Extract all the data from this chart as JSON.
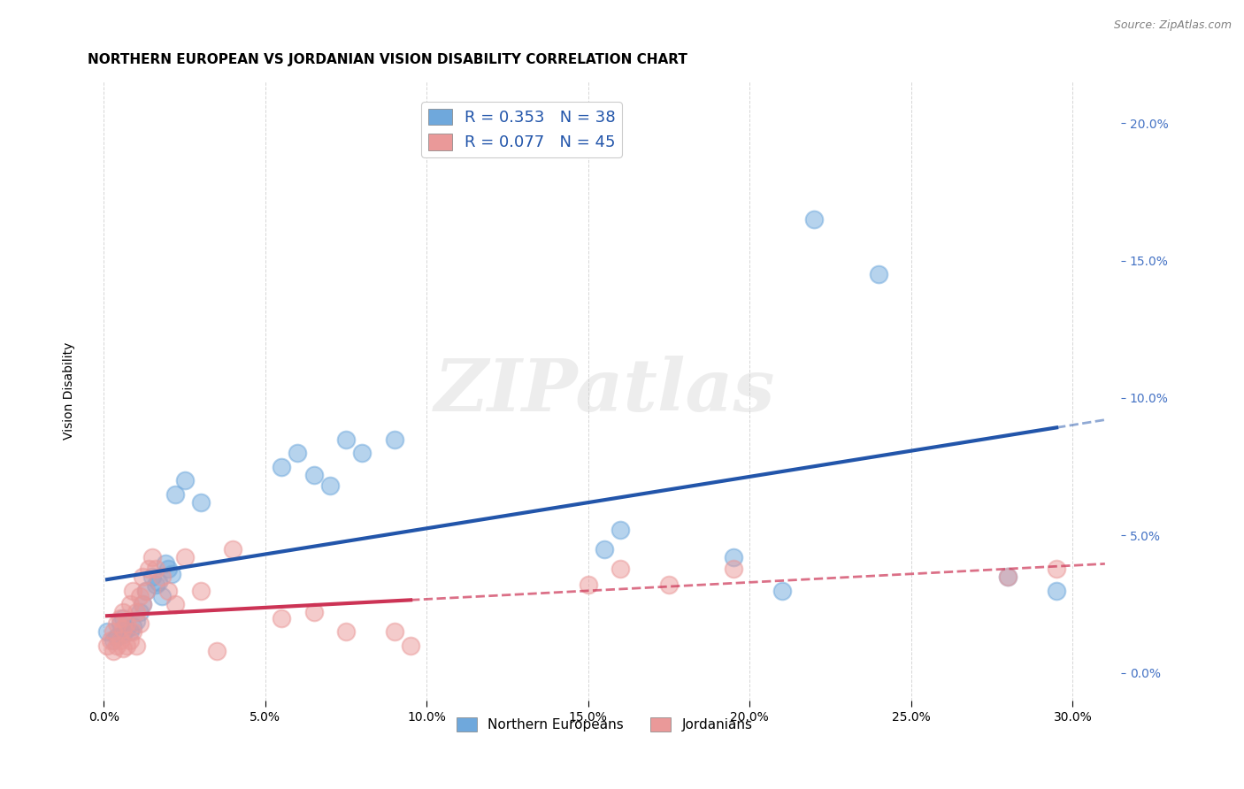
{
  "title": "NORTHERN EUROPEAN VS JORDANIAN VISION DISABILITY CORRELATION CHART",
  "source": "Source: ZipAtlas.com",
  "ylabel": "Vision Disability",
  "xlabel_ticks": [
    "0.0%",
    "5.0%",
    "10.0%",
    "15.0%",
    "20.0%",
    "25.0%",
    "30.0%"
  ],
  "xlabel_vals": [
    0.0,
    0.05,
    0.1,
    0.15,
    0.2,
    0.25,
    0.3
  ],
  "ylabel_ticks": [
    "0.0%",
    "5.0%",
    "10.0%",
    "15.0%",
    "20.0%"
  ],
  "ylabel_vals": [
    0.0,
    0.05,
    0.1,
    0.15,
    0.2
  ],
  "xlim": [
    -0.005,
    0.315
  ],
  "ylim": [
    -0.01,
    0.215
  ],
  "blue_R": "0.353",
  "blue_N": "38",
  "pink_R": "0.077",
  "pink_N": "45",
  "blue_color": "#6fa8dc",
  "blue_line_color": "#2255aa",
  "pink_color": "#ea9999",
  "pink_line_color": "#cc3355",
  "watermark": "ZIPatlas",
  "legend_label_blue": "Northern Europeans",
  "legend_label_pink": "Jordanians",
  "blue_scatter_x": [
    0.001,
    0.003,
    0.004,
    0.005,
    0.006,
    0.006,
    0.007,
    0.008,
    0.009,
    0.01,
    0.011,
    0.012,
    0.013,
    0.015,
    0.016,
    0.017,
    0.018,
    0.019,
    0.02,
    0.021,
    0.022,
    0.025,
    0.03,
    0.055,
    0.06,
    0.065,
    0.07,
    0.075,
    0.08,
    0.09,
    0.155,
    0.16,
    0.195,
    0.21,
    0.22,
    0.24,
    0.28,
    0.295
  ],
  "blue_scatter_y": [
    0.015,
    0.012,
    0.013,
    0.018,
    0.014,
    0.02,
    0.016,
    0.015,
    0.017,
    0.019,
    0.022,
    0.025,
    0.03,
    0.035,
    0.032,
    0.033,
    0.028,
    0.04,
    0.038,
    0.036,
    0.065,
    0.07,
    0.062,
    0.075,
    0.08,
    0.072,
    0.068,
    0.085,
    0.08,
    0.085,
    0.045,
    0.052,
    0.042,
    0.03,
    0.165,
    0.145,
    0.035,
    0.03
  ],
  "pink_scatter_x": [
    0.001,
    0.002,
    0.003,
    0.003,
    0.004,
    0.004,
    0.005,
    0.005,
    0.006,
    0.006,
    0.006,
    0.007,
    0.007,
    0.008,
    0.008,
    0.009,
    0.009,
    0.01,
    0.01,
    0.011,
    0.011,
    0.012,
    0.012,
    0.013,
    0.014,
    0.015,
    0.016,
    0.018,
    0.02,
    0.022,
    0.025,
    0.03,
    0.035,
    0.04,
    0.055,
    0.065,
    0.075,
    0.09,
    0.095,
    0.15,
    0.16,
    0.175,
    0.195,
    0.28,
    0.295
  ],
  "pink_scatter_y": [
    0.01,
    0.012,
    0.008,
    0.015,
    0.01,
    0.018,
    0.012,
    0.02,
    0.009,
    0.016,
    0.022,
    0.01,
    0.018,
    0.012,
    0.025,
    0.015,
    0.03,
    0.01,
    0.022,
    0.018,
    0.028,
    0.025,
    0.035,
    0.03,
    0.038,
    0.042,
    0.038,
    0.035,
    0.03,
    0.025,
    0.042,
    0.03,
    0.008,
    0.045,
    0.02,
    0.022,
    0.015,
    0.015,
    0.01,
    0.032,
    0.038,
    0.032,
    0.038,
    0.035,
    0.038
  ],
  "grid_color": "#cccccc",
  "bg_color": "#ffffff",
  "title_fontsize": 11,
  "axis_label_fontsize": 10,
  "tick_fontsize": 10,
  "right_tick_color": "#4472c4"
}
